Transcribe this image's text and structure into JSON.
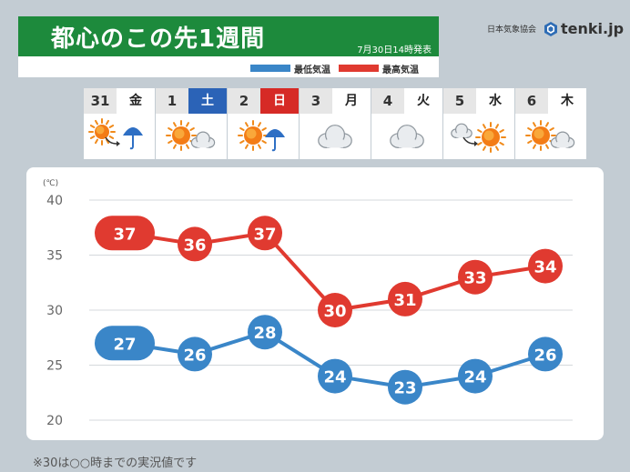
{
  "header": {
    "title": "都心のこの先1週間",
    "issued": "7月30日14時発表",
    "legend_min": "最低気温",
    "legend_max": "最高気温",
    "colors": {
      "band": "#1d8a3c",
      "min": "#3a86c8",
      "max": "#e03a30"
    }
  },
  "brand": {
    "org": "日本気象協会",
    "logo": "tenki.jp"
  },
  "days": [
    {
      "num": "31",
      "wd": "金",
      "kind": "",
      "weather": "sun-then-rain"
    },
    {
      "num": "1",
      "wd": "土",
      "kind": "sat",
      "weather": "sun-with-cloud"
    },
    {
      "num": "2",
      "wd": "日",
      "kind": "sun",
      "weather": "sun-with-rain"
    },
    {
      "num": "3",
      "wd": "月",
      "kind": "",
      "weather": "cloud"
    },
    {
      "num": "4",
      "wd": "火",
      "kind": "",
      "weather": "cloud"
    },
    {
      "num": "5",
      "wd": "水",
      "kind": "",
      "weather": "cloud-then-sun"
    },
    {
      "num": "6",
      "wd": "木",
      "kind": "",
      "weather": "sun-with-cloud"
    }
  ],
  "chart_data": {
    "type": "line",
    "ylabel": "(℃)",
    "ylim": [
      20,
      40
    ],
    "yticks": [
      20,
      25,
      30,
      35,
      40
    ],
    "grid": true,
    "categories": [
      "31 金",
      "1 土",
      "2 日",
      "3 月",
      "4 火",
      "5 水",
      "6 木"
    ],
    "series": [
      {
        "name": "最高気温",
        "color": "#e03a30",
        "values": [
          37,
          36,
          37,
          30,
          31,
          33,
          34
        ]
      },
      {
        "name": "最低気温",
        "color": "#3a86c8",
        "values": [
          27,
          26,
          28,
          24,
          23,
          24,
          26
        ]
      }
    ]
  },
  "footnote": "※30は○○時までの実況値です"
}
